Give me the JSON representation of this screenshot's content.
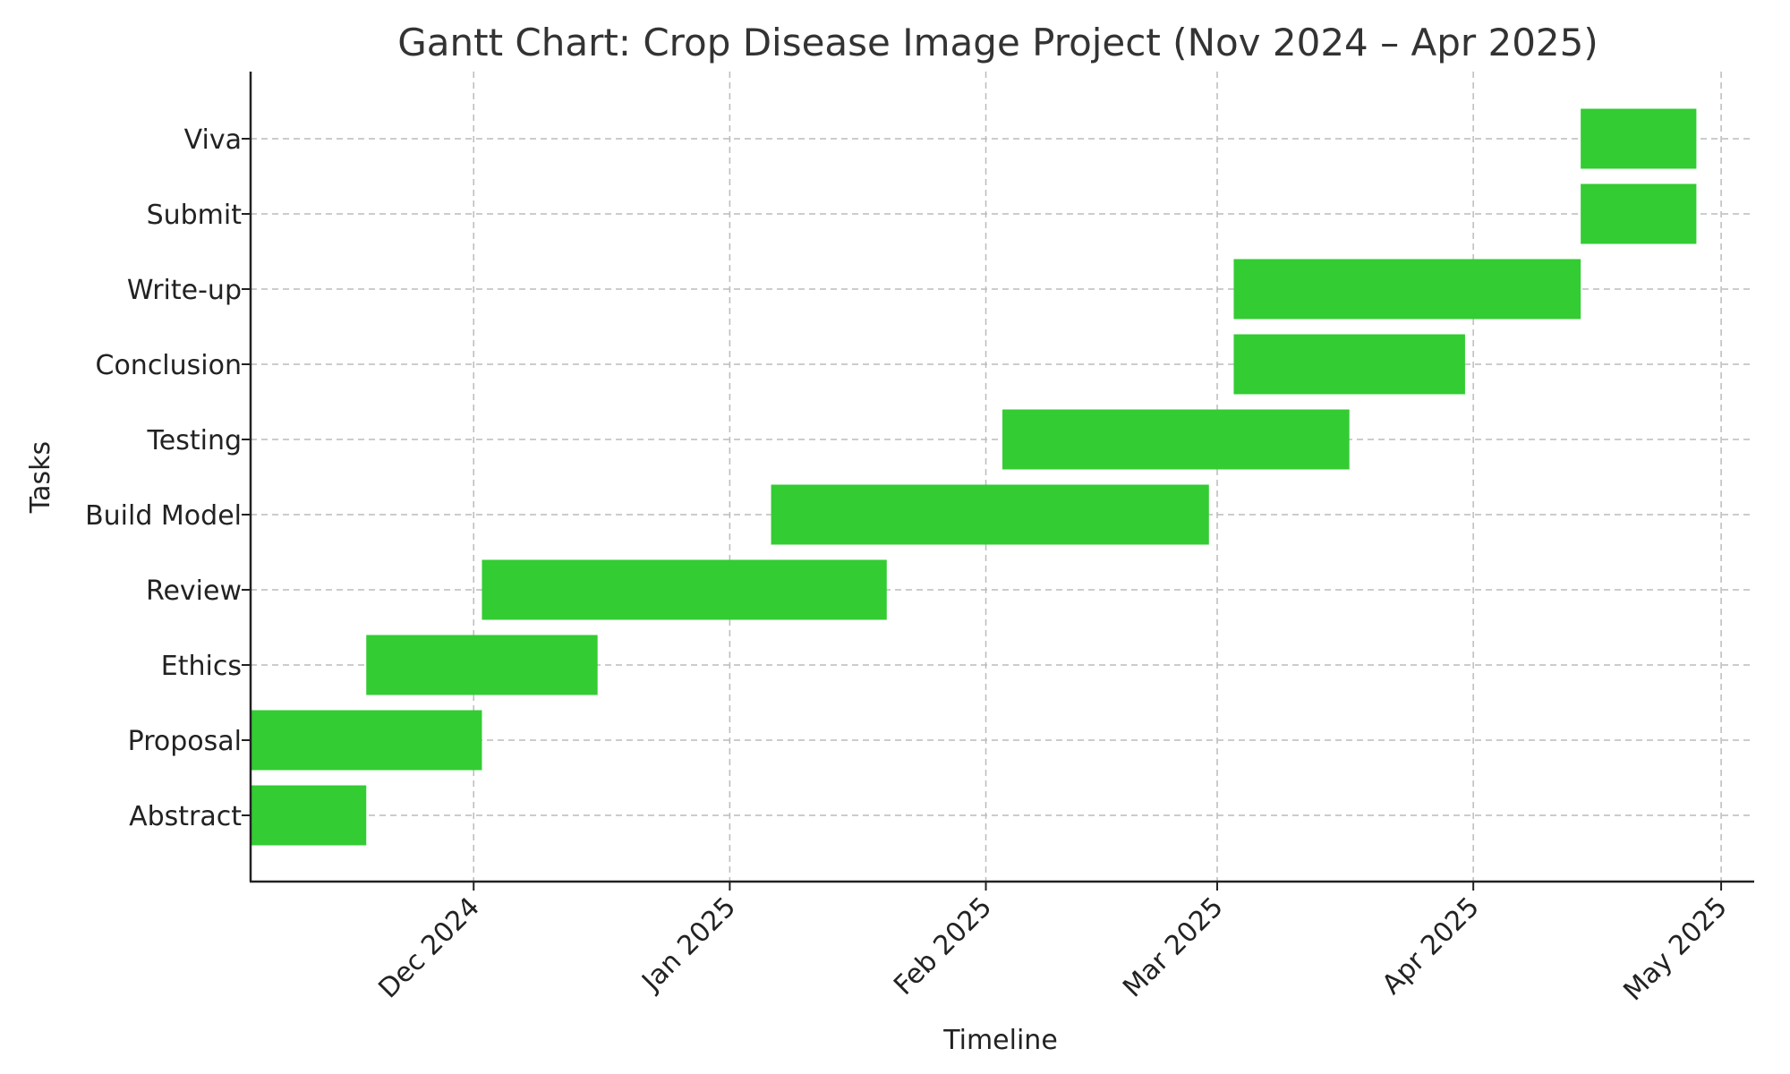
{
  "chart_data": {
    "type": "gantt",
    "title": "Gantt Chart: Crop Disease Image Project (Nov 2024 – Apr 2025)",
    "xlabel": "Timeline",
    "ylabel": "Tasks",
    "xlim": [
      "2024-11-04",
      "2025-05-05"
    ],
    "x_ticks": [
      {
        "date": "2024-12-01",
        "label": "Dec 2024"
      },
      {
        "date": "2025-01-01",
        "label": "Jan 2025"
      },
      {
        "date": "2025-02-01",
        "label": "Feb 2025"
      },
      {
        "date": "2025-03-01",
        "label": "Mar 2025"
      },
      {
        "date": "2025-04-01",
        "label": "Apr 2025"
      },
      {
        "date": "2025-05-01",
        "label": "May 2025"
      }
    ],
    "grid": true,
    "bar_color": "#33cc33",
    "tasks": [
      {
        "name": "Abstract",
        "start": "2024-11-04",
        "end": "2024-11-17"
      },
      {
        "name": "Proposal",
        "start": "2024-11-04",
        "end": "2024-12-01"
      },
      {
        "name": "Ethics",
        "start": "2024-11-18",
        "end": "2024-12-15"
      },
      {
        "name": "Review",
        "start": "2024-12-02",
        "end": "2025-01-19"
      },
      {
        "name": "Build Model",
        "start": "2025-01-06",
        "end": "2025-02-27"
      },
      {
        "name": "Testing",
        "start": "2025-02-03",
        "end": "2025-03-16"
      },
      {
        "name": "Conclusion",
        "start": "2025-03-03",
        "end": "2025-03-30"
      },
      {
        "name": "Write-up",
        "start": "2025-03-03",
        "end": "2025-04-13"
      },
      {
        "name": "Submit",
        "start": "2025-04-14",
        "end": "2025-04-27"
      },
      {
        "name": "Viva",
        "start": "2025-04-14",
        "end": "2025-04-27"
      }
    ]
  }
}
